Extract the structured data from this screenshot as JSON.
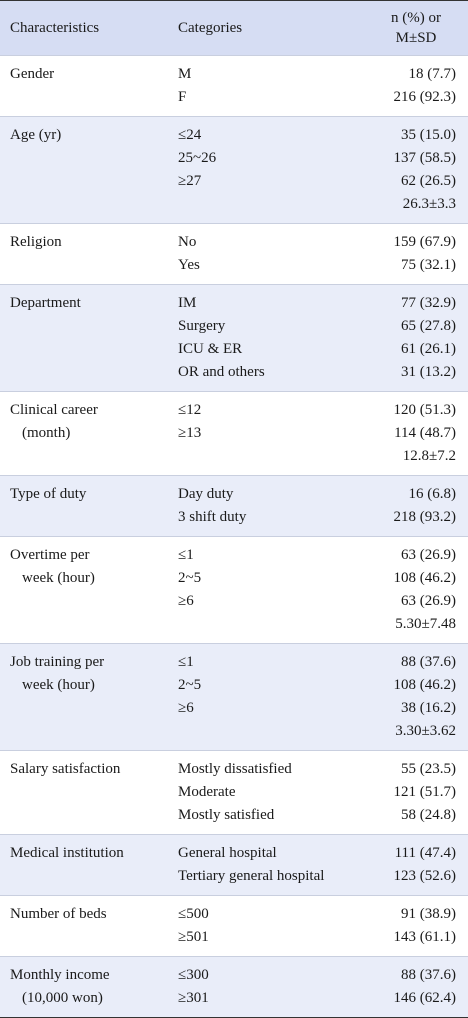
{
  "table": {
    "header": [
      "Characteristics",
      "Categories",
      [
        "n (%) or",
        "M±SD"
      ]
    ],
    "groups": [
      {
        "characteristic": [
          "Gender"
        ],
        "rows": [
          {
            "category": "M",
            "value": "18 (7.7)"
          },
          {
            "category": "F",
            "value": "216 (92.3)"
          }
        ]
      },
      {
        "characteristic": [
          "Age (yr)"
        ],
        "rows": [
          {
            "category": "≤24",
            "value": "35 (15.0)"
          },
          {
            "category": "25~26",
            "value": "137 (58.5)"
          },
          {
            "category": "≥27",
            "value": "62 (26.5)"
          },
          {
            "value": "26.3±3.3"
          }
        ]
      },
      {
        "characteristic": [
          "Religion"
        ],
        "rows": [
          {
            "category": "No",
            "value": "159 (67.9)"
          },
          {
            "category": "Yes",
            "value": "75 (32.1)"
          }
        ]
      },
      {
        "characteristic": [
          "Department"
        ],
        "rows": [
          {
            "category": "IM",
            "value": "77 (32.9)"
          },
          {
            "category": "Surgery",
            "value": "65 (27.8)"
          },
          {
            "category": "ICU & ER",
            "value": "61 (26.1)"
          },
          {
            "category": "OR and others",
            "value": "31 (13.2)"
          }
        ]
      },
      {
        "characteristic": [
          "Clinical career",
          "(month)"
        ],
        "rows": [
          {
            "category": "≤12",
            "value": "120 (51.3)"
          },
          {
            "category": "≥13",
            "value": "114 (48.7)"
          },
          {
            "value": "12.8±7.2"
          }
        ]
      },
      {
        "characteristic": [
          "Type of duty"
        ],
        "rows": [
          {
            "category": "Day duty",
            "value": "16 (6.8)"
          },
          {
            "category": "3 shift duty",
            "value": "218 (93.2)"
          }
        ]
      },
      {
        "characteristic": [
          "Overtime per",
          "week (hour)"
        ],
        "rows": [
          {
            "category": "≤1",
            "value": "63 (26.9)"
          },
          {
            "category": "2~5",
            "value": "108 (46.2)"
          },
          {
            "category": "≥6",
            "value": "63 (26.9)"
          },
          {
            "value": "5.30±7.48"
          }
        ]
      },
      {
        "characteristic": [
          "Job training per",
          "week (hour)"
        ],
        "rows": [
          {
            "category": "≤1",
            "value": "88 (37.6)"
          },
          {
            "category": "2~5",
            "value": "108 (46.2)"
          },
          {
            "category": "≥6",
            "value": "38 (16.2)"
          },
          {
            "value": "3.30±3.62"
          }
        ]
      },
      {
        "characteristic": [
          "Salary satisfaction"
        ],
        "rows": [
          {
            "category": "Mostly dissatisfied",
            "value": "55 (23.5)"
          },
          {
            "category": "Moderate",
            "value": "121 (51.7)"
          },
          {
            "category": "Mostly satisfied",
            "value": "58 (24.8)"
          }
        ]
      },
      {
        "characteristic": [
          "Medical institution"
        ],
        "rows": [
          {
            "category": "General hospital",
            "value": "111 (47.4)"
          },
          {
            "category": "Tertiary general hospital",
            "value": "123 (52.6)"
          }
        ]
      },
      {
        "characteristic": [
          "Number of beds"
        ],
        "rows": [
          {
            "category": "≤500",
            "value": "91 (38.9)"
          },
          {
            "category": "≥501",
            "value": "143 (61.1)"
          }
        ]
      },
      {
        "characteristic": [
          "Monthly income",
          "(10,000 won)"
        ],
        "rows": [
          {
            "category": "≤300",
            "value": "88 (37.6)"
          },
          {
            "category": "≥301",
            "value": "146 (62.4)"
          }
        ]
      }
    ]
  }
}
